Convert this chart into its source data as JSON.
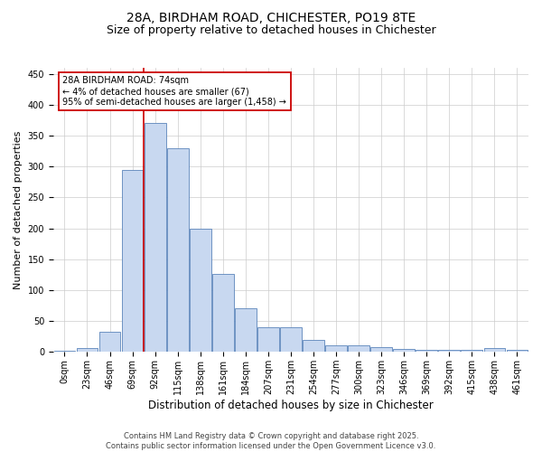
{
  "title_line1": "28A, BIRDHAM ROAD, CHICHESTER, PO19 8TE",
  "title_line2": "Size of property relative to detached houses in Chichester",
  "xlabel": "Distribution of detached houses by size in Chichester",
  "ylabel": "Number of detached properties",
  "bar_labels": [
    "0sqm",
    "23sqm",
    "46sqm",
    "69sqm",
    "92sqm",
    "115sqm",
    "138sqm",
    "161sqm",
    "184sqm",
    "207sqm",
    "231sqm",
    "254sqm",
    "277sqm",
    "300sqm",
    "323sqm",
    "346sqm",
    "369sqm",
    "392sqm",
    "415sqm",
    "438sqm",
    "461sqm"
  ],
  "bar_values": [
    2,
    7,
    33,
    295,
    370,
    330,
    200,
    127,
    70,
    40,
    40,
    20,
    10,
    10,
    8,
    5,
    3,
    3,
    3,
    7,
    3
  ],
  "bar_color": "#c8d8f0",
  "bar_edge_color": "#5b85bb",
  "grid_color": "#cccccc",
  "background_color": "#ffffff",
  "annotation_text": "28A BIRDHAM ROAD: 74sqm\n← 4% of detached houses are smaller (67)\n95% of semi-detached houses are larger (1,458) →",
  "annotation_box_color": "#ffffff",
  "annotation_box_edge_color": "#cc0000",
  "vline_x": 3.5,
  "vline_color": "#cc0000",
  "ylim": [
    0,
    460
  ],
  "yticks": [
    0,
    50,
    100,
    150,
    200,
    250,
    300,
    350,
    400,
    450
  ],
  "footer_line1": "Contains HM Land Registry data © Crown copyright and database right 2025.",
  "footer_line2": "Contains public sector information licensed under the Open Government Licence v3.0.",
  "title_fontsize": 10,
  "subtitle_fontsize": 9,
  "axis_label_fontsize": 8,
  "tick_fontsize": 7,
  "annotation_fontsize": 7,
  "footer_fontsize": 6
}
